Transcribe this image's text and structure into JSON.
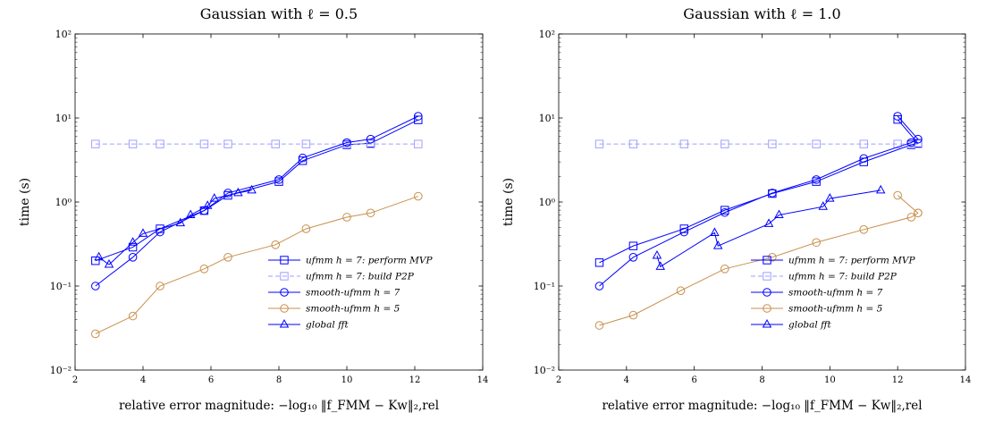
{
  "chart_data": [
    {
      "type": "line",
      "title": "Gaussian with ℓ = 0.5",
      "xlabel": "relative error magnitude: −log₁₀ ‖f_FMM − Kw‖₂,rel",
      "ylabel": "time (s)",
      "xlim": [
        2,
        14
      ],
      "ylim": [
        0.01,
        100
      ],
      "yscale": "log",
      "xticks": [
        2,
        4,
        6,
        8,
        10,
        12,
        14
      ],
      "yticks": [
        {
          "value": 0.01,
          "label": "10⁻²"
        },
        {
          "value": 0.1,
          "label": "10⁻¹"
        },
        {
          "value": 1,
          "label": "10⁰"
        },
        {
          "value": 10,
          "label": "10¹"
        },
        {
          "value": 100,
          "label": "10²"
        }
      ],
      "legend_position": "bottom-right",
      "series": [
        {
          "name": "ufmm h = 7: perform MVP",
          "color": "#0000ff",
          "marker": "square",
          "dashed": false,
          "x": [
            2.6,
            3.7,
            4.5,
            5.8,
            6.5,
            8.0,
            8.7,
            10.0,
            10.7,
            12.1
          ],
          "y": [
            0.2,
            0.29,
            0.48,
            0.79,
            1.2,
            1.75,
            3.1,
            4.8,
            5.0,
            9.5
          ]
        },
        {
          "name": "ufmm h = 7: build P2P",
          "color": "#9f9fff",
          "marker": "square",
          "dashed": true,
          "x": [
            2.6,
            3.7,
            4.5,
            5.8,
            6.5,
            7.9,
            8.8,
            10.0,
            10.7,
            12.1
          ],
          "y": [
            4.9,
            4.9,
            4.9,
            4.9,
            4.9,
            4.9,
            4.9,
            4.9,
            4.9,
            4.9
          ]
        },
        {
          "name": "smooth-ufmm h = 7",
          "color": "#0000ff",
          "marker": "circle",
          "dashed": false,
          "x": [
            2.6,
            3.7,
            4.5,
            5.8,
            6.5,
            8.0,
            8.7,
            10.0,
            10.7,
            12.1
          ],
          "y": [
            0.1,
            0.22,
            0.44,
            0.79,
            1.28,
            1.85,
            3.35,
            5.1,
            5.6,
            10.5
          ]
        },
        {
          "name": "smooth-ufmm h = 5",
          "color": "#c8904d",
          "marker": "circle",
          "dashed": false,
          "x": [
            2.6,
            3.7,
            4.5,
            5.8,
            6.5,
            7.9,
            8.8,
            10.0,
            10.7,
            12.1
          ],
          "y": [
            0.027,
            0.044,
            0.1,
            0.16,
            0.22,
            0.31,
            0.48,
            0.66,
            0.74,
            1.17
          ]
        },
        {
          "name": "global fft",
          "color": "#0000ff",
          "marker": "triangle",
          "dashed": false,
          "x": [
            2.7,
            3.0,
            3.7,
            4.0,
            5.1,
            5.4,
            5.9,
            6.1,
            6.8,
            7.2
          ],
          "y": [
            0.22,
            0.18,
            0.33,
            0.42,
            0.56,
            0.7,
            0.9,
            1.1,
            1.28,
            1.38
          ]
        }
      ]
    },
    {
      "type": "line",
      "title": "Gaussian with ℓ = 1.0",
      "xlabel": "relative error magnitude: −log₁₀ ‖f_FMM − Kw‖₂,rel",
      "ylabel": "time (s)",
      "xlim": [
        2,
        14
      ],
      "ylim": [
        0.01,
        100
      ],
      "yscale": "log",
      "xticks": [
        2,
        4,
        6,
        8,
        10,
        12,
        14
      ],
      "yticks": [
        {
          "value": 0.01,
          "label": "10⁻²"
        },
        {
          "value": 0.1,
          "label": "10⁻¹"
        },
        {
          "value": 1,
          "label": "10⁰"
        },
        {
          "value": 10,
          "label": "10¹"
        },
        {
          "value": 100,
          "label": "10²"
        }
      ],
      "legend_position": "bottom-right",
      "series": [
        {
          "name": "ufmm h = 7: perform MVP",
          "color": "#0000ff",
          "marker": "square",
          "dashed": false,
          "x": [
            3.2,
            4.2,
            5.7,
            6.9,
            8.3,
            9.6,
            11.0,
            12.4,
            12.6,
            12.0
          ],
          "y": [
            0.19,
            0.3,
            0.48,
            0.8,
            1.26,
            1.75,
            3.0,
            4.8,
            5.0,
            9.6
          ]
        },
        {
          "name": "ufmm h = 7: build P2P",
          "color": "#9f9fff",
          "marker": "square",
          "dashed": true,
          "x": [
            3.2,
            4.2,
            5.7,
            6.9,
            8.3,
            9.6,
            11.0,
            12.0,
            12.4,
            12.6
          ],
          "y": [
            4.9,
            4.9,
            4.9,
            4.9,
            4.9,
            4.9,
            4.9,
            4.9,
            4.9,
            4.9
          ]
        },
        {
          "name": "smooth-ufmm h = 7",
          "color": "#0000ff",
          "marker": "circle",
          "dashed": false,
          "x": [
            3.2,
            4.2,
            5.7,
            6.9,
            8.3,
            9.6,
            11.0,
            12.4,
            12.6,
            12.0
          ],
          "y": [
            0.1,
            0.22,
            0.44,
            0.75,
            1.28,
            1.85,
            3.3,
            5.1,
            5.6,
            10.5
          ]
        },
        {
          "name": "smooth-ufmm h = 5",
          "color": "#c8904d",
          "marker": "circle",
          "dashed": false,
          "x": [
            3.2,
            4.2,
            5.6,
            6.9,
            8.3,
            9.6,
            11.0,
            12.4,
            12.6
          ],
          "y": [
            0.034,
            0.045,
            0.088,
            0.16,
            0.22,
            0.33,
            0.47,
            0.66,
            0.74
          ]
        },
        {
          "name": "smooth-ufmm h = 5 (right segment)",
          "color": "#c8904d",
          "marker": "circle",
          "dashed": false,
          "no_legend": true,
          "x": [
            12.0,
            12.6
          ],
          "y": [
            1.2,
            0.74
          ]
        },
        {
          "name": "global fft",
          "color": "#0000ff",
          "marker": "triangle",
          "dashed": false,
          "x": [
            4.9,
            5.0,
            6.6,
            6.7,
            8.2,
            8.5,
            9.8,
            10.0,
            11.5
          ],
          "y": [
            0.23,
            0.17,
            0.43,
            0.3,
            0.55,
            0.7,
            0.88,
            1.1,
            1.38
          ]
        }
      ]
    }
  ]
}
